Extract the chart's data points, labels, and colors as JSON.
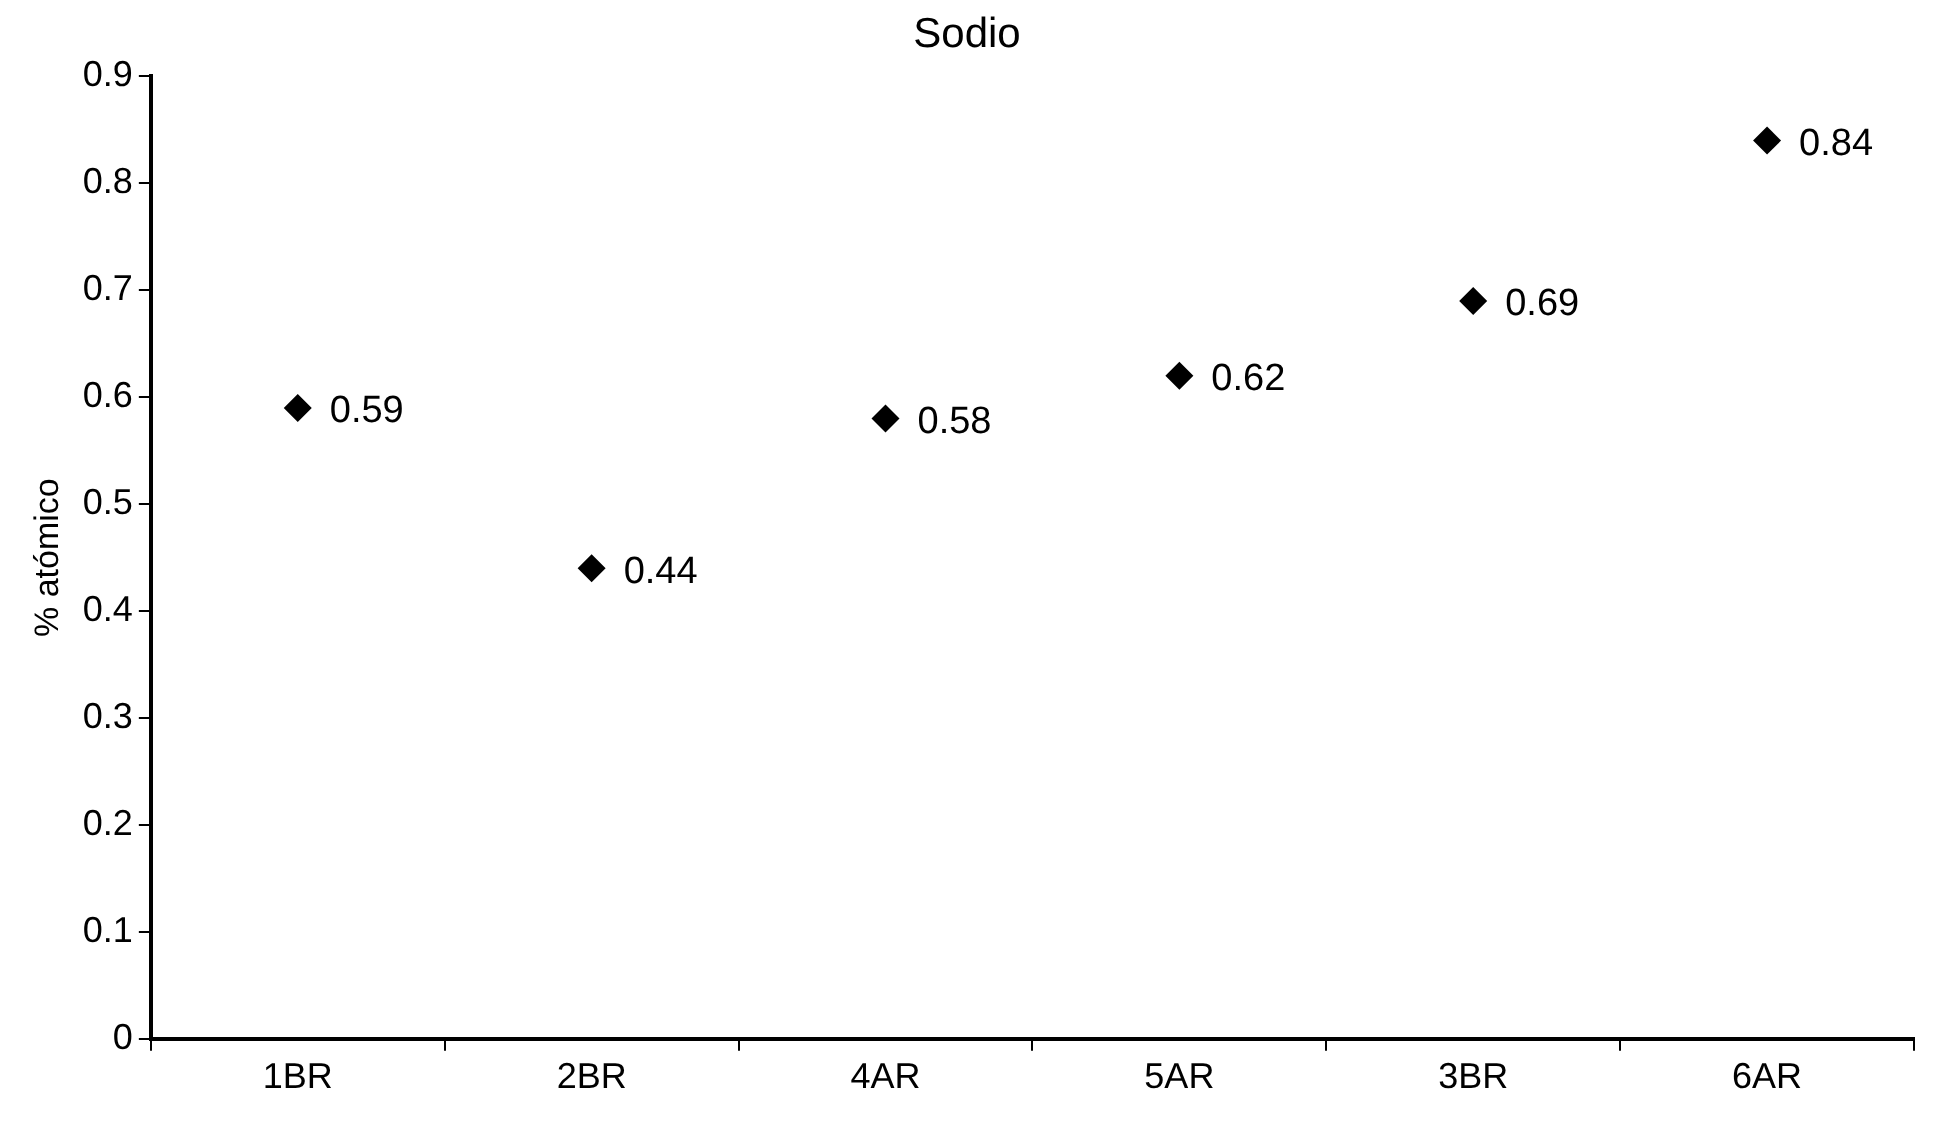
{
  "chart_data": {
    "type": "scatter",
    "title": "Sodio",
    "ylabel": "% atómico",
    "categories": [
      "1BR",
      "2BR",
      "4AR",
      "5AR",
      "3BR",
      "6AR"
    ],
    "series": [
      {
        "color": "#000000",
        "values": [
          0.59,
          0.44,
          0.58,
          0.62,
          0.69,
          0.84
        ]
      }
    ],
    "ylim": [
      0,
      0.9
    ],
    "yticks": [
      0,
      0.1,
      0.2,
      0.3,
      0.4,
      0.5,
      0.6,
      0.7,
      0.8,
      0.9
    ],
    "marker": "diamond",
    "data_labels": true,
    "grid": false,
    "legend": false
  }
}
